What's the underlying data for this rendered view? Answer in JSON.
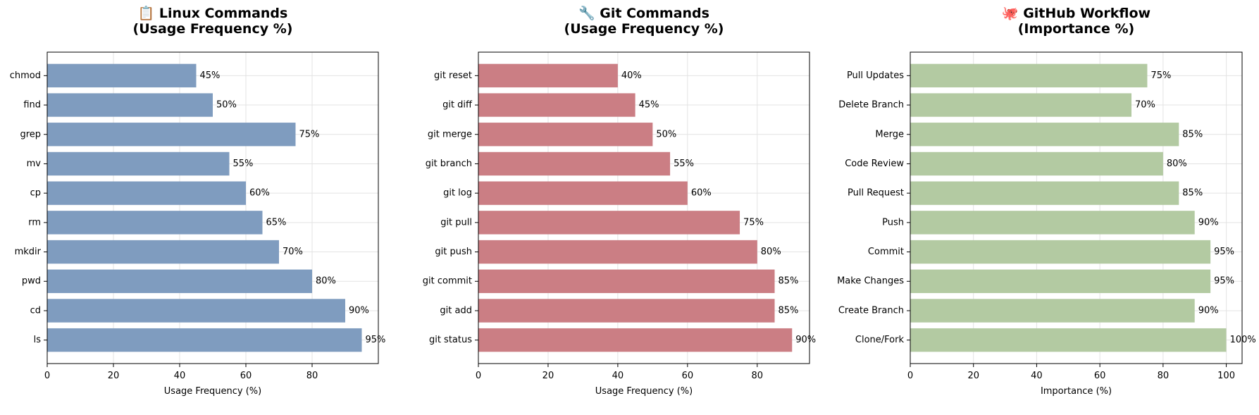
{
  "chart_data": [
    {
      "type": "bar",
      "orientation": "horizontal",
      "title": "📋 Linux Commands\n(Usage Frequency %)",
      "xlabel": "Usage Frequency (%)",
      "ylabel": "",
      "categories": [
        "ls",
        "cd",
        "pwd",
        "mkdir",
        "rm",
        "cp",
        "mv",
        "grep",
        "find",
        "chmod"
      ],
      "values": [
        95,
        90,
        80,
        70,
        65,
        60,
        55,
        75,
        50,
        45
      ],
      "value_labels": [
        "95%",
        "90%",
        "80%",
        "70%",
        "65%",
        "60%",
        "55%",
        "75%",
        "50%",
        "45%"
      ],
      "xlim": [
        0,
        100
      ],
      "xticks": [
        0,
        20,
        40,
        60,
        80
      ],
      "grid": true,
      "color": "#7f9cbf"
    },
    {
      "type": "bar",
      "orientation": "horizontal",
      "title": "🔧 Git Commands\n(Usage Frequency %)",
      "xlabel": "Usage Frequency (%)",
      "ylabel": "",
      "categories": [
        "git status",
        "git add",
        "git commit",
        "git push",
        "git pull",
        "git log",
        "git branch",
        "git merge",
        "git diff",
        "git reset"
      ],
      "values": [
        90,
        85,
        85,
        80,
        75,
        60,
        55,
        50,
        45,
        40
      ],
      "value_labels": [
        "90%",
        "85%",
        "85%",
        "80%",
        "75%",
        "60%",
        "55%",
        "50%",
        "45%",
        "40%"
      ],
      "xlim": [
        0,
        95
      ],
      "xticks": [
        0,
        20,
        40,
        60,
        80
      ],
      "grid": true,
      "color": "#cb7e84"
    },
    {
      "type": "bar",
      "orientation": "horizontal",
      "title": "🐙 GitHub Workflow\n(Importance %)",
      "xlabel": "Importance (%)",
      "ylabel": "",
      "categories": [
        "Clone/Fork",
        "Create Branch",
        "Make Changes",
        "Commit",
        "Push",
        "Pull Request",
        "Code Review",
        "Merge",
        "Delete Branch",
        "Pull Updates"
      ],
      "values": [
        100,
        90,
        95,
        95,
        90,
        85,
        80,
        85,
        70,
        75
      ],
      "value_labels": [
        "100%",
        "90%",
        "95%",
        "95%",
        "90%",
        "85%",
        "80%",
        "85%",
        "70%",
        "75%"
      ],
      "xlim": [
        0,
        105
      ],
      "xticks": [
        0,
        20,
        40,
        60,
        80,
        100
      ],
      "grid": true,
      "color": "#b3caa2"
    }
  ]
}
